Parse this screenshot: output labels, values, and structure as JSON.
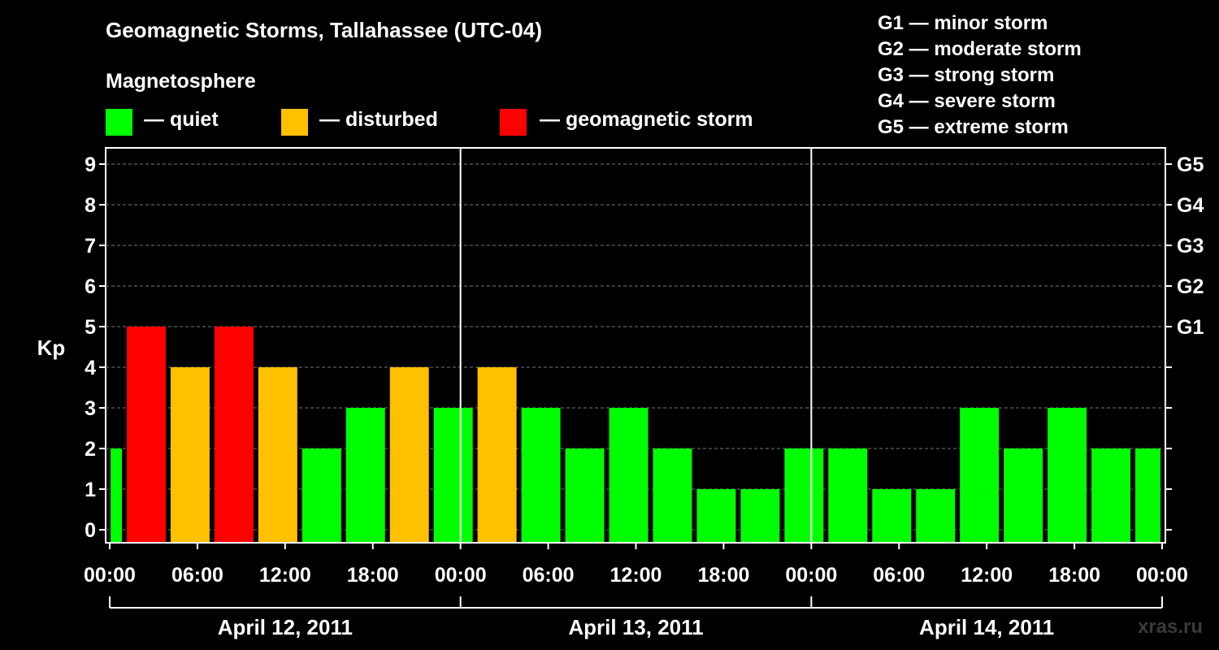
{
  "title": "Geomagnetic Storms, Tallahassee (UTC-04)",
  "legend": {
    "heading": "Magnetosphere",
    "items": [
      {
        "label": "— quiet",
        "color": "#00ff00"
      },
      {
        "label": "— disturbed",
        "color": "#ffc000"
      },
      {
        "label": "— geomagnetic storm",
        "color": "#ff0000"
      }
    ]
  },
  "g_scale": [
    "G1 — minor storm",
    "G2 — moderate storm",
    "G3 — strong storm",
    "G4 — severe storm",
    "G5 — extreme storm"
  ],
  "watermark": "xras.ru",
  "chart_data": {
    "type": "bar",
    "title": "Geomagnetic Storms, Tallahassee (UTC-04)",
    "ylabel": "Kp",
    "ylim": [
      0,
      9
    ],
    "y_ticks": [
      "0",
      "1",
      "2",
      "3",
      "4",
      "5",
      "6",
      "7",
      "8",
      "9"
    ],
    "right_axis": [
      {
        "kp": 5,
        "label": "G1"
      },
      {
        "kp": 6,
        "label": "G2"
      },
      {
        "kp": 7,
        "label": "G3"
      },
      {
        "kp": 8,
        "label": "G4"
      },
      {
        "kp": 9,
        "label": "G5"
      }
    ],
    "x_ticks": [
      "00:00",
      "06:00",
      "12:00",
      "18:00",
      "00:00",
      "06:00",
      "12:00",
      "18:00",
      "00:00",
      "06:00",
      "12:00",
      "18:00",
      "00:00"
    ],
    "days": [
      "April 12, 2011",
      "April 13, 2011",
      "April 14, 2011"
    ],
    "interval_hours": 3,
    "first_bar_start_hours": -2,
    "x_range_hours": [
      0,
      72
    ],
    "values": [
      2,
      5,
      4,
      5,
      4,
      2,
      3,
      4,
      3,
      4,
      3,
      2,
      3,
      2,
      1,
      1,
      2,
      2,
      1,
      1,
      3,
      2,
      3,
      2,
      2
    ],
    "colors": {
      "quiet": "#00ff00",
      "disturbed": "#ffc000",
      "storm": "#ff0000"
    },
    "grid": true
  }
}
